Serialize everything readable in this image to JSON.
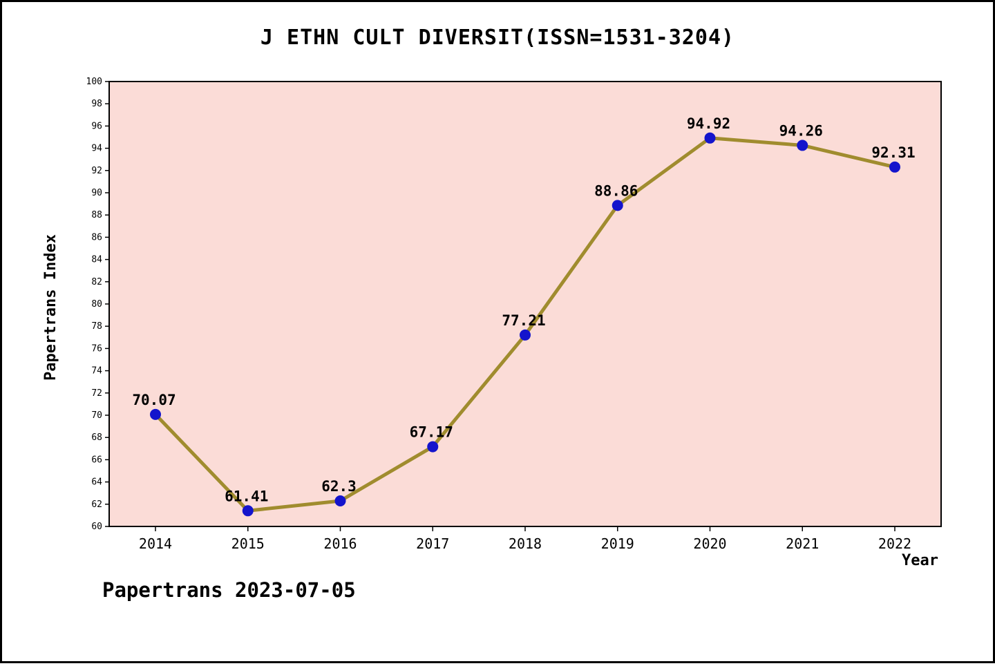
{
  "footer": "Papertrans 2023-07-05",
  "chart_data": {
    "type": "line",
    "title": "J ETHN CULT DIVERSIT(ISSN=1531-3204)",
    "xlabel": "Year",
    "ylabel": "Papertrans Index",
    "categories": [
      "2014",
      "2015",
      "2016",
      "2017",
      "2018",
      "2019",
      "2020",
      "2021",
      "2022"
    ],
    "values": [
      70.07,
      61.41,
      62.3,
      67.17,
      77.21,
      88.86,
      94.92,
      94.26,
      92.31
    ],
    "point_labels": [
      "70.07",
      "61.41",
      "62.3",
      "67.17",
      "77.21",
      "88.86",
      "94.92",
      "94.26",
      "92.31"
    ],
    "ylim": [
      60,
      100
    ],
    "ytick_step": 2,
    "grid": false,
    "legend_position": "none",
    "colors": {
      "plot_background": "#fbdcd7",
      "line": "#a08c2e",
      "point": "#1414cc",
      "axis": "#000000",
      "page_border": "#000000"
    }
  }
}
